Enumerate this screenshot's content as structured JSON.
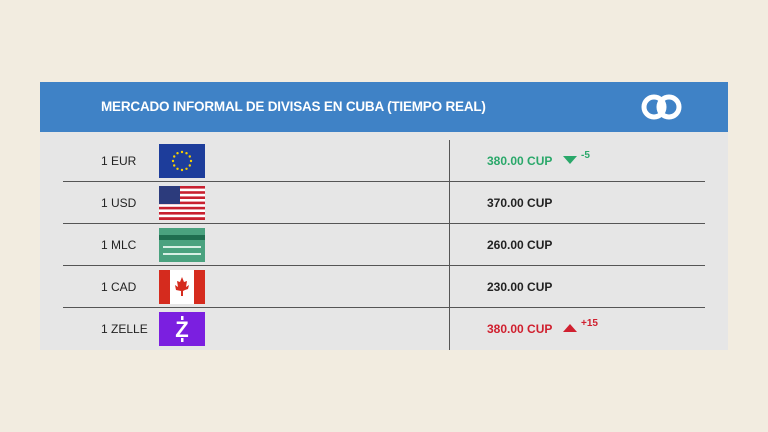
{
  "header": {
    "title": "MERCADO INFORMAL DE DIVISAS EN CUBA (TIEMPO REAL)",
    "logo": "linked-rings-logo"
  },
  "colors": {
    "header": "#3f82c6",
    "up": "#d0202f",
    "down": "#2aa86a",
    "background": "#f2ece0"
  },
  "rates": [
    {
      "label": "1 EUR",
      "flag": "eu-flag",
      "value": "380.00 CUP",
      "trend": "down",
      "change": "-5"
    },
    {
      "label": "1 USD",
      "flag": "us-flag",
      "value": "370.00 CUP",
      "trend": "none",
      "change": ""
    },
    {
      "label": "1 MLC",
      "flag": "mlc-card-icon",
      "value": "260.00 CUP",
      "trend": "none",
      "change": ""
    },
    {
      "label": "1 CAD",
      "flag": "canada-flag",
      "value": "230.00 CUP",
      "trend": "none",
      "change": ""
    },
    {
      "label": "1 ZELLE",
      "flag": "zelle-logo",
      "value": "380.00 CUP",
      "trend": "up",
      "change": "+15"
    }
  ]
}
